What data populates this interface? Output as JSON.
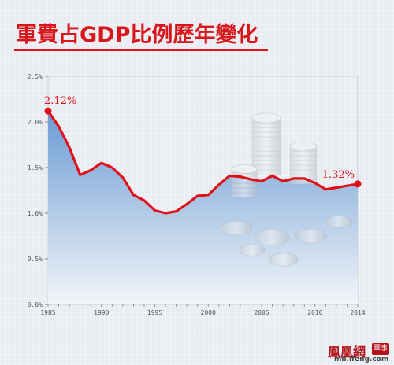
{
  "title": "軍費占GDP比例歷年變化",
  "colors": {
    "line": "#e01019",
    "area_top": "#6f9fd6",
    "area_bottom": "#f0f4f8",
    "title": "#d8161b",
    "axis_text": "#555555",
    "grid": "#c8ced6"
  },
  "chart_data": {
    "type": "area",
    "title": "軍費占GDP比例歷年變化",
    "xlabel": "",
    "ylabel": "",
    "xlim": [
      1985,
      2014
    ],
    "ylim": [
      0,
      2.5
    ],
    "x_ticks": [
      1985,
      1990,
      1995,
      2000,
      2005,
      2010,
      2014
    ],
    "y_ticks": [
      0,
      0.5,
      1.0,
      1.5,
      2.0,
      2.5
    ],
    "y_tick_labels": [
      "0.0%",
      "0.5%",
      "1.0%",
      "1.5%",
      "2.0%",
      "2.5%"
    ],
    "series": [
      {
        "x": [
          1985,
          1986,
          1987,
          1988,
          1989,
          1990,
          1991,
          1992,
          1993,
          1994,
          1995,
          1996,
          1997,
          1998,
          1999,
          2000,
          2001,
          2002,
          2003,
          2004,
          2005,
          2006,
          2007,
          2008,
          2009,
          2010,
          2011,
          2012,
          2013,
          2014
        ],
        "values": [
          2.12,
          1.95,
          1.72,
          1.42,
          1.47,
          1.55,
          1.5,
          1.39,
          1.2,
          1.14,
          1.03,
          1.0,
          1.02,
          1.1,
          1.19,
          1.2,
          1.31,
          1.41,
          1.4,
          1.37,
          1.35,
          1.41,
          1.35,
          1.38,
          1.38,
          1.33,
          1.26,
          1.28,
          1.3,
          1.32
        ]
      }
    ],
    "annotations": [
      {
        "x": 1985,
        "y": 2.12,
        "text": "2.12%"
      },
      {
        "x": 2014,
        "y": 1.32,
        "text": "1.32%"
      }
    ],
    "grid": false
  },
  "logo": {
    "text": "鳳凰網",
    "badge": "軍事",
    "url": "mil.ifeng.com"
  }
}
